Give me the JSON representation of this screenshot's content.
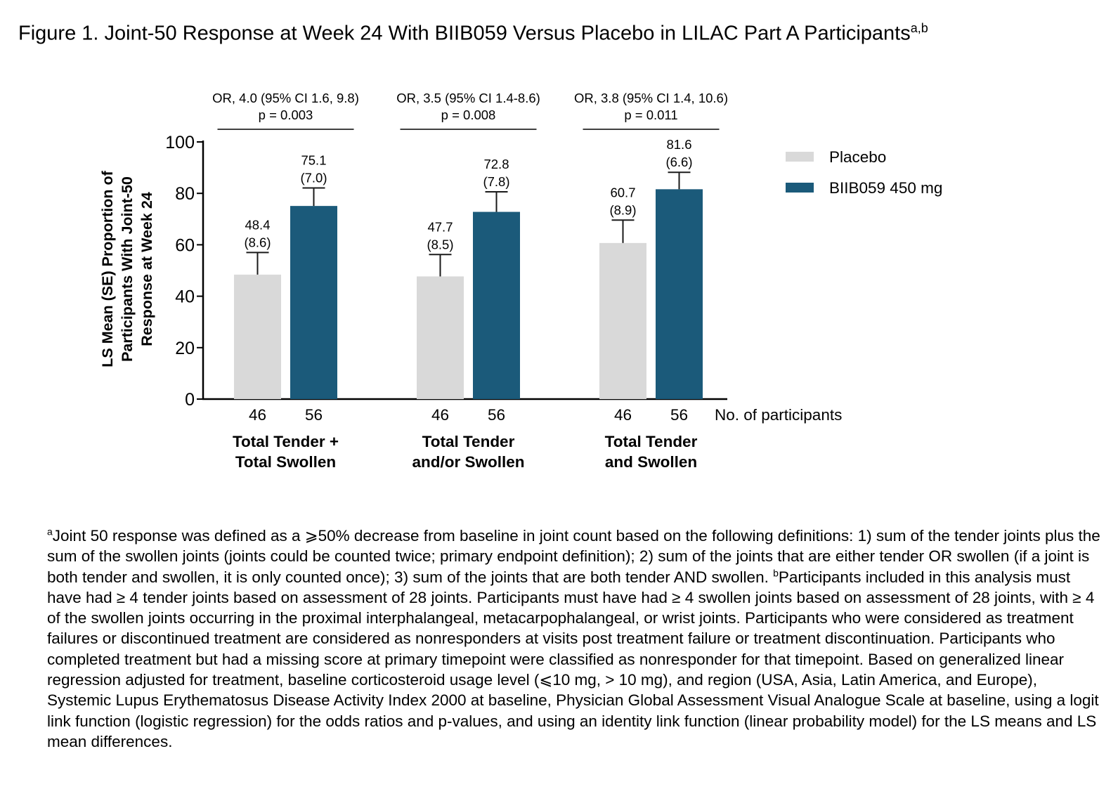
{
  "title": {
    "text": "Figure 1. Joint-50 Response at Week 24 With BIIB059 Versus Placebo in LILAC Part A Participants",
    "superscript": "a,b"
  },
  "chart_data": {
    "type": "bar",
    "ylabel_lines": [
      "LS Mean (SE) Proportion of",
      "Participants With Joint-50",
      "Response at Week 24"
    ],
    "ylim": [
      0,
      100
    ],
    "yticks": [
      0,
      20,
      40,
      60,
      80,
      100
    ],
    "categories": [
      {
        "lines": [
          "Total Tender +",
          "Total Swollen"
        ]
      },
      {
        "lines": [
          "Total Tender",
          "and/or Swollen"
        ]
      },
      {
        "lines": [
          "Total Tender",
          "and Swollen"
        ]
      }
    ],
    "series": [
      {
        "name": "Placebo",
        "color": "#d9d9d9",
        "values": [
          48.4,
          47.7,
          60.7
        ],
        "se": [
          8.6,
          8.5,
          8.9
        ],
        "value_labels": [
          "48.4",
          "47.7",
          "60.7"
        ],
        "se_labels": [
          "(8.6)",
          "(8.5)",
          "(8.9)"
        ],
        "n": [
          "46",
          "46",
          "46"
        ]
      },
      {
        "name": "BIIB059 450 mg",
        "color": "#1b5a7a",
        "values": [
          75.1,
          72.8,
          81.6
        ],
        "se": [
          7.0,
          7.8,
          6.6
        ],
        "value_labels": [
          "75.1",
          "72.8",
          "81.6"
        ],
        "se_labels": [
          "(7.0)",
          "(7.8)",
          "(6.6)"
        ],
        "n": [
          "56",
          "56",
          "56"
        ]
      }
    ],
    "comparisons": [
      {
        "or_text": "OR, 4.0 (95% CI 1.6, 9.8)",
        "p_text": "p = 0.003"
      },
      {
        "or_text": "OR, 3.5 (95% CI 1.4-8.6)",
        "p_text": "p = 0.008"
      },
      {
        "or_text": "OR, 3.8 (95% CI 1.4, 10.6)",
        "p_text": "p = 0.011"
      }
    ],
    "n_label": "No. of participants",
    "legend_position": "right"
  },
  "footnote": {
    "a_mark": "a",
    "a_text": "Joint 50 response was defined as a ⩾50% decrease from baseline in joint count based on the following definitions: 1) sum of the tender joints plus the sum of the swollen joints (joints could be counted twice; primary endpoint definition); 2) sum of the joints that are either tender OR swollen (if a joint is both tender and swollen, it is only counted once); 3) sum of the joints that are both tender AND swollen. ",
    "b_mark": "b",
    "b_text": "Participants included in this analysis must have had ≥ 4 tender joints based on assessment of 28 joints. Participants must have had ≥ 4 swollen joints based on assessment of 28 joints, with ≥ 4 of the swollen joints occurring in the proximal interphalangeal, metacarpophalangeal, or wrist joints. Participants who were considered as treatment failures or discontinued treatment are considered as nonresponders at visits post treatment failure or treatment discontinuation. Participants who completed treatment but had a missing score at primary timepoint were classified as nonresponder for that timepoint. Based on generalized linear regression adjusted for treatment, baseline corticosteroid usage level (⩽10 mg, > 10 mg), and region (USA, Asia, Latin America, and Europe), Systemic Lupus Erythematosus Disease Activity Index 2000 at baseline, Physician Global Assessment Visual Analogue Scale at baseline, using a logit link function (logistic regression) for the odds ratios and p-values, and using an identity link function (linear probability model) for the LS means and LS mean differences."
  }
}
